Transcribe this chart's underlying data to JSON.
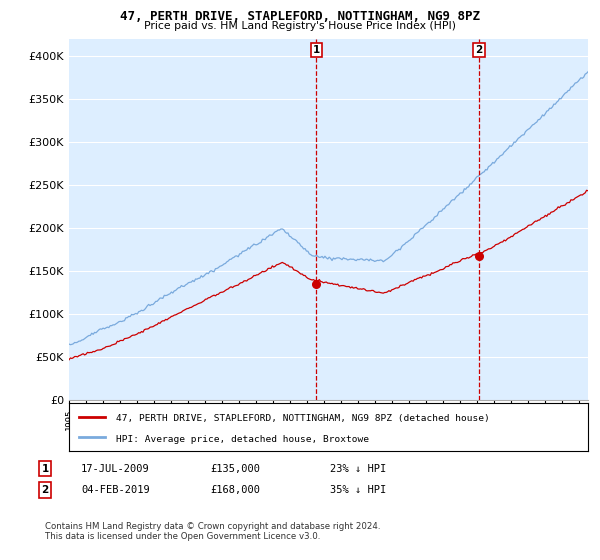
{
  "title": "47, PERTH DRIVE, STAPLEFORD, NOTTINGHAM, NG9 8PZ",
  "subtitle": "Price paid vs. HM Land Registry's House Price Index (HPI)",
  "legend_line1": "47, PERTH DRIVE, STAPLEFORD, NOTTINGHAM, NG9 8PZ (detached house)",
  "legend_line2": "HPI: Average price, detached house, Broxtowe",
  "annotation1_date": "17-JUL-2009",
  "annotation1_price": "£135,000",
  "annotation1_hpi": "23% ↓ HPI",
  "annotation2_date": "04-FEB-2019",
  "annotation2_price": "£168,000",
  "annotation2_hpi": "35% ↓ HPI",
  "footer": "Contains HM Land Registry data © Crown copyright and database right 2024.\nThis data is licensed under the Open Government Licence v3.0.",
  "property_color": "#cc0000",
  "hpi_color": "#7aaadd",
  "background_plot": "#ddeeff",
  "background_fig": "#ffffff",
  "ylim_min": 0,
  "ylim_max": 420000,
  "sale1_year": 2009.54,
  "sale1_price": 135000,
  "sale2_year": 2019.09,
  "sale2_price": 168000
}
